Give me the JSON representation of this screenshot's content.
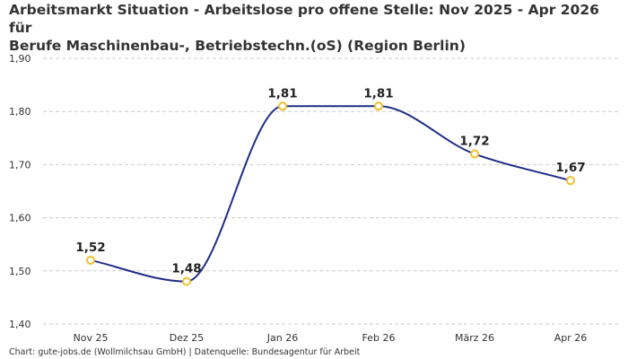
{
  "title_line1": "Arbeitsmarkt Situation - Arbeitslose pro offene Stelle: Nov 2025 - Apr 2026 für",
  "title_line2": "Berufe Maschinenbau-, Betriebstechn.(oS) (Region Berlin)",
  "footer": "Chart: gute-jobs.de (Wollmilchsau GmbH) | Datenquelle: Bundesagentur für Arbeit",
  "colors": {
    "line": "#1f2d86",
    "marker": "#f2c12e",
    "grid": "#cccccc"
  },
  "chart_data": {
    "type": "line",
    "categories": [
      "Nov 25",
      "Dez 25",
      "Jan 26",
      "Feb 26",
      "März 26",
      "Apr 26"
    ],
    "series": [
      {
        "values": [
          1.52,
          1.48,
          1.81,
          1.81,
          1.72,
          1.67
        ],
        "labels": [
          "1,52",
          "1,48",
          "1,81",
          "1,81",
          "1,72",
          "1,67"
        ]
      }
    ],
    "ylim": [
      1.4,
      1.9
    ],
    "yticks": [
      1.4,
      1.5,
      1.6,
      1.7,
      1.8,
      1.9
    ],
    "ytick_labels": [
      "1,40",
      "1,50",
      "1,60",
      "1,70",
      "1,80",
      "1,90"
    ],
    "grid": true,
    "smooth": true
  }
}
